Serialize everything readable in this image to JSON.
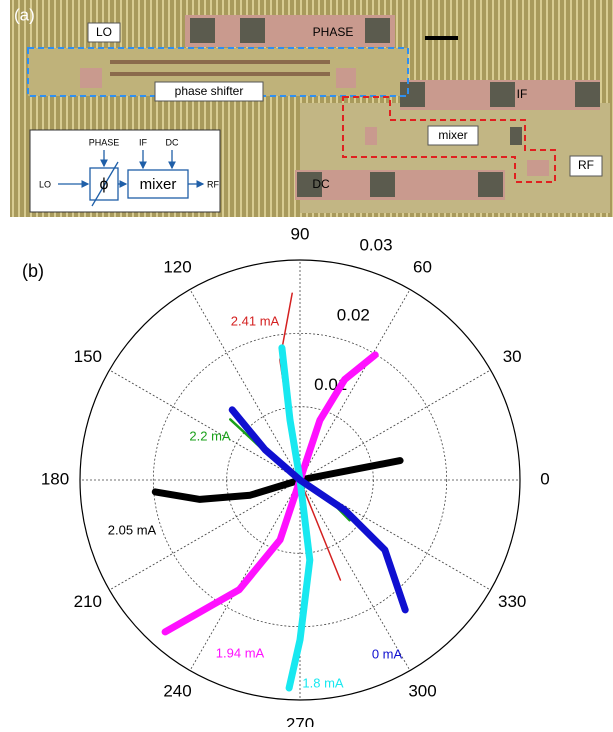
{
  "panel_a": {
    "label": "(a)",
    "chip": {
      "lo": "LO",
      "phase": "PHASE",
      "phase_shifter": "phase shifter",
      "if": "IF",
      "mixer": "mixer",
      "rf": "RF",
      "dc": "DC"
    },
    "inset": {
      "phase": "PHASE",
      "if": "IF",
      "dc": "DC",
      "lo": "LO",
      "phi": "ϕ",
      "mixer": "mixer",
      "rf": "RF"
    }
  },
  "chart_data": {
    "type": "polar",
    "panel_label": "(b)",
    "rlim": [
      0,
      0.03
    ],
    "rticks": [
      0.01,
      0.02,
      0.03
    ],
    "thetaticks": [
      0,
      30,
      60,
      90,
      120,
      150,
      180,
      210,
      240,
      270,
      300,
      330
    ],
    "series": [
      {
        "name": "2.41 mA",
        "color": "#d42020",
        "theta": [
          92.4,
          99.5,
          101,
          0,
          292,
          292
        ],
        "r": [
          0.0255,
          0.0166,
          0.007,
          0,
          0.0073,
          0.0147
        ]
      },
      {
        "name": "2.2 mA",
        "color": "#1aa01a",
        "theta": [
          139,
          141,
          0,
          326,
          321
        ],
        "r": [
          0.0126,
          0.0061,
          0,
          0.0049,
          0.0087
        ]
      },
      {
        "name": "2.05 mA",
        "color": "#000000",
        "theta": [
          184.7,
          191,
          197,
          0,
          11,
          11
        ],
        "r": [
          0.0198,
          0.0139,
          0.0071,
          0,
          0.007,
          0.0139
        ]
      },
      {
        "name": "1.94 mA",
        "color": "#ff10ff",
        "theta": [
          59,
          66,
          71.6,
          0,
          251.6,
          241,
          228.4
        ],
        "r": [
          0.0199,
          0.015,
          0.0086,
          0,
          0.0086,
          0.0171,
          0.0277
        ]
      },
      {
        "name": "1.8 mA",
        "color": "#18e8f0",
        "theta": [
          97.8,
          99.5,
          0,
          277,
          270,
          267
        ],
        "r": [
          0.0182,
          0.0083,
          0,
          0.011,
          0.0218,
          0.0284
        ]
      },
      {
        "name": "0 mA",
        "color": "#1010d0",
        "theta": [
          134,
          139,
          0,
          326,
          320.5,
          309
        ],
        "r": [
          0.0133,
          0.0063,
          0,
          0.0074,
          0.015,
          0.0228
        ]
      }
    ]
  }
}
